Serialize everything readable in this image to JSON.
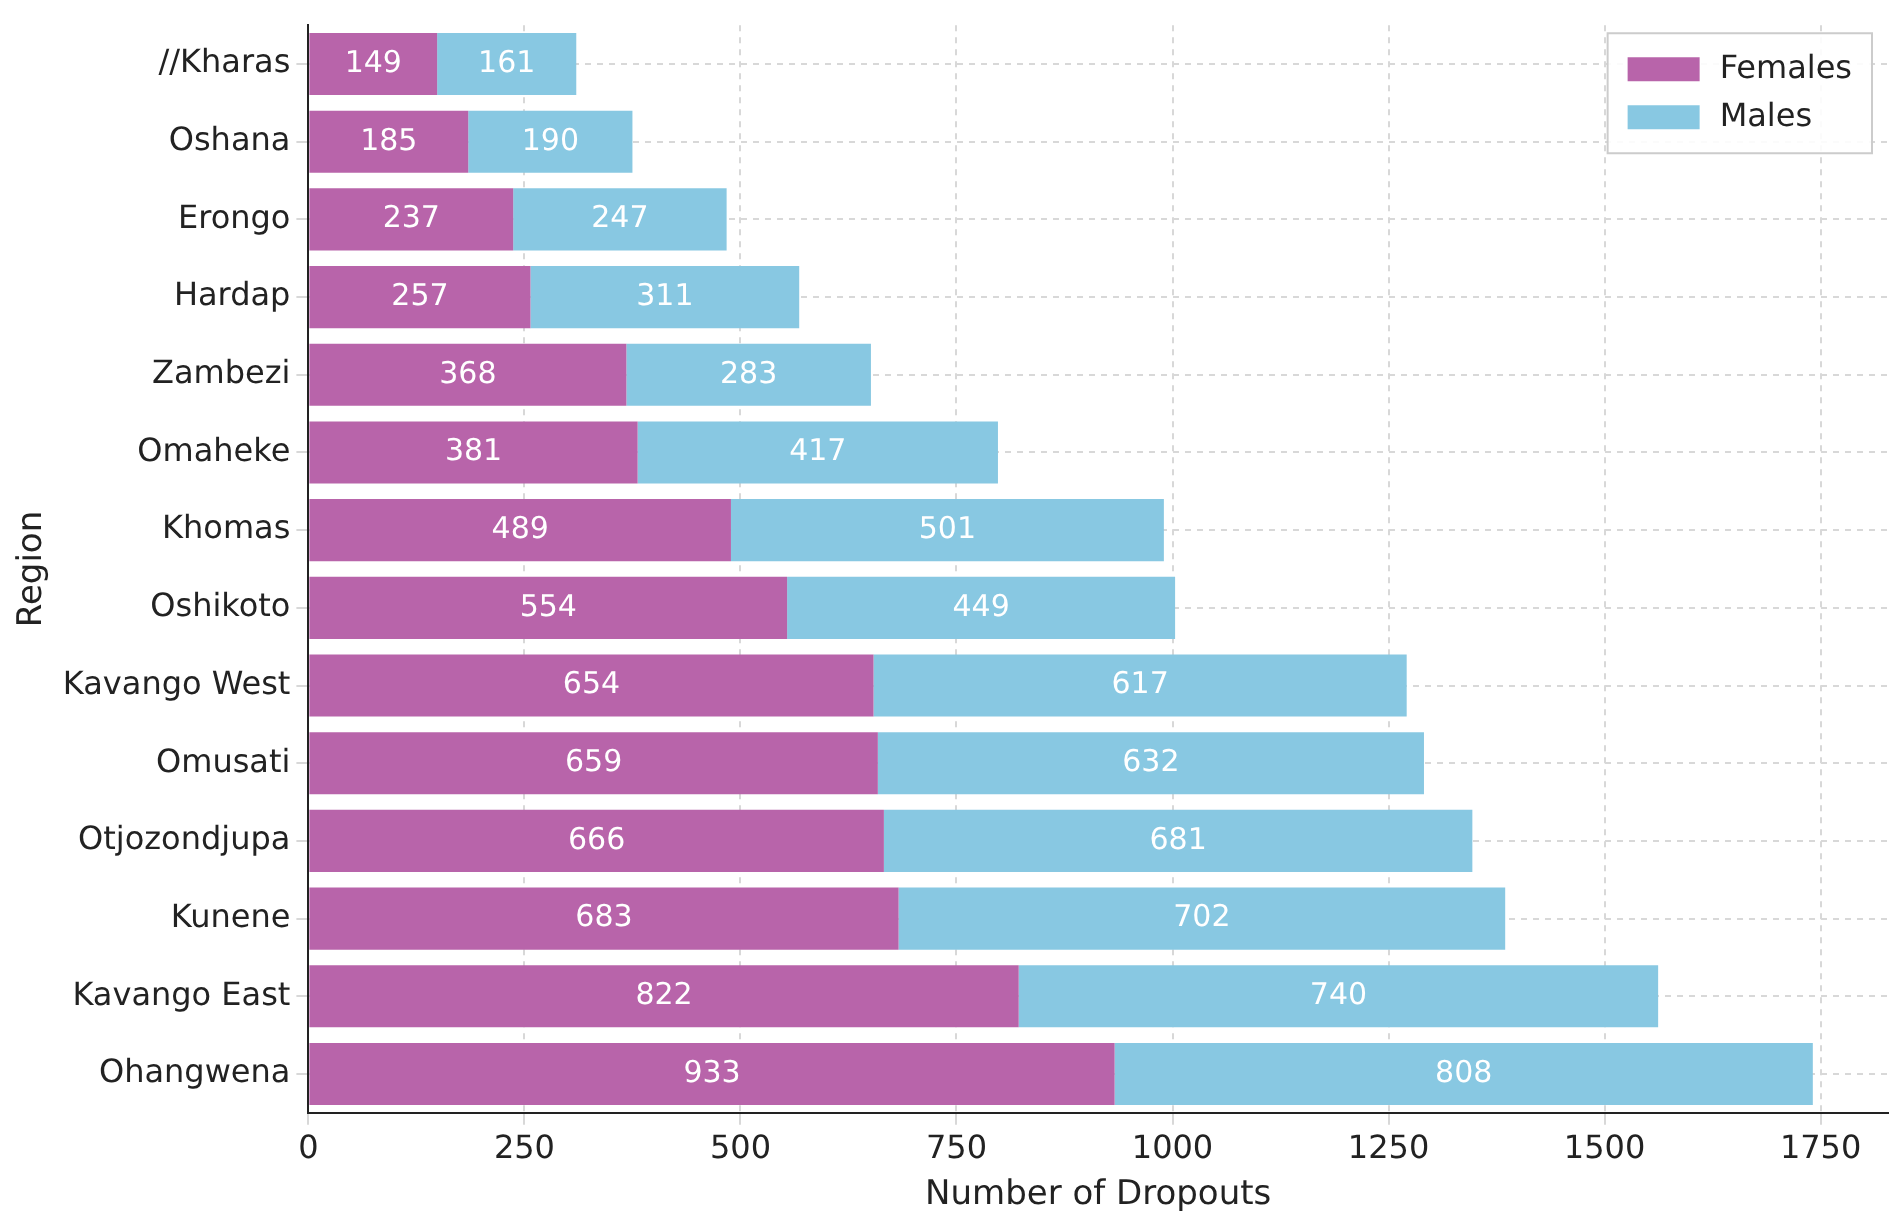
{
  "chart_data": {
    "type": "bar",
    "orientation": "horizontal",
    "stacked": true,
    "xlabel": "Number of Dropouts",
    "ylabel": "Region",
    "categories": [
      "//Kharas",
      "Oshana",
      "Erongo",
      "Hardap",
      "Zambezi",
      "Omaheke",
      "Khomas",
      "Oshikoto",
      "Kavango West",
      "Omusati",
      "Otjozondjupa",
      "Kunene",
      "Kavango East",
      "Ohangwena"
    ],
    "series": [
      {
        "name": "Females",
        "color": "#b864aa",
        "values": [
          149,
          185,
          237,
          257,
          368,
          381,
          489,
          554,
          654,
          659,
          666,
          683,
          822,
          933
        ]
      },
      {
        "name": "Males",
        "color": "#88c8e2",
        "values": [
          161,
          190,
          247,
          311,
          283,
          417,
          501,
          449,
          617,
          632,
          681,
          702,
          740,
          808
        ]
      }
    ],
    "xlim": [
      0,
      1828
    ],
    "xticks": [
      0,
      250,
      500,
      750,
      1000,
      1250,
      1500,
      1750
    ],
    "grid": true,
    "legend": "top right",
    "data_labels": true
  }
}
